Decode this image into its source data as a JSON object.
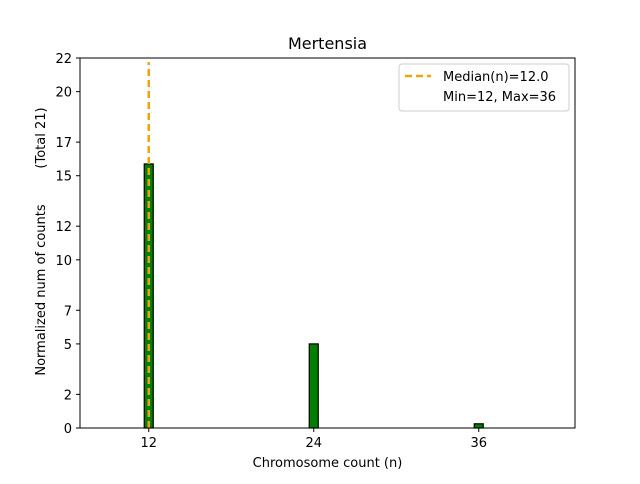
{
  "chart_data": {
    "type": "bar",
    "title": "Mertensia",
    "xlabel": "Chromosome count (n)",
    "ylabel": "Normalized num of counts",
    "ylabel_total": "(Total 21)",
    "x": [
      12,
      24,
      36
    ],
    "values": [
      15.7,
      5.0,
      0.25
    ],
    "xlim": [
      7,
      43
    ],
    "ylim": [
      0,
      22
    ],
    "xticks": [
      12,
      24,
      36
    ],
    "yticks": [
      0,
      2,
      5,
      7,
      10,
      12,
      15,
      17,
      20,
      22
    ],
    "bar_color": "#008000",
    "median_color": "#f0a30a",
    "median_x": 12.0,
    "legend": {
      "position": "top-right",
      "entries": [
        {
          "label": "Median(n)=12.0",
          "style": "dashed-line"
        },
        {
          "label": "Min=12, Max=36",
          "style": "none"
        }
      ]
    },
    "grid": false
  }
}
